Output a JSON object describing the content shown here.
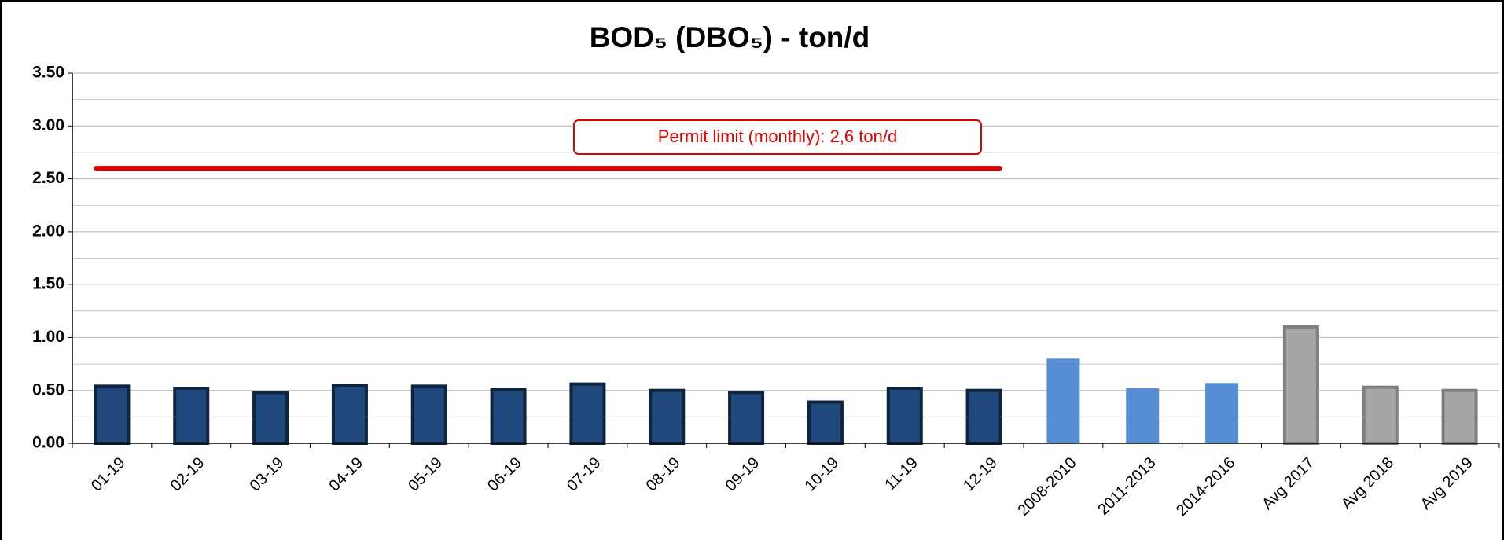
{
  "chart_data": {
    "type": "bar",
    "title": "BOD₅ (DBO₅) - ton/d",
    "categories": [
      "01-19",
      "02-19",
      "03-19",
      "04-19",
      "05-19",
      "06-19",
      "07-19",
      "08-19",
      "09-19",
      "10-19",
      "11-19",
      "12-19",
      "2008-2010",
      "2011-2013",
      "2014-2016",
      "Avg 2017",
      "Avg 2018",
      "Avg 2019"
    ],
    "values": [
      0.54,
      0.52,
      0.48,
      0.55,
      0.54,
      0.51,
      0.56,
      0.5,
      0.48,
      0.39,
      0.52,
      0.5,
      0.8,
      0.52,
      0.57,
      1.1,
      0.53,
      0.5
    ],
    "colors": [
      "#1f497d",
      "#1f497d",
      "#1f497d",
      "#1f497d",
      "#1f497d",
      "#1f497d",
      "#1f497d",
      "#1f497d",
      "#1f497d",
      "#1f497d",
      "#1f497d",
      "#1f497d",
      "#558ed5",
      "#558ed5",
      "#558ed5",
      "#a6a6a6",
      "#a6a6a6",
      "#a6a6a6"
    ],
    "border_colors": [
      "#0f243e",
      "#0f243e",
      "#0f243e",
      "#0f243e",
      "#0f243e",
      "#0f243e",
      "#0f243e",
      "#0f243e",
      "#0f243e",
      "#0f243e",
      "#0f243e",
      "#0f243e",
      null,
      null,
      null,
      "#7f7f7f",
      "#7f7f7f",
      "#7f7f7f"
    ],
    "ylim": [
      0,
      3.5
    ],
    "yticks": [
      {
        "value": 0,
        "label": "0.00"
      },
      {
        "value": 0.5,
        "label": "0.50"
      },
      {
        "value": 1,
        "label": "1.00"
      },
      {
        "value": 1.5,
        "label": "1.50"
      },
      {
        "value": 2,
        "label": "2.00"
      },
      {
        "value": 2.5,
        "label": "2.50"
      },
      {
        "value": 3,
        "label": "3.00"
      },
      {
        "value": 3.5,
        "label": "3.50"
      }
    ],
    "minor_yticks": [
      0.25,
      0.75,
      1.25,
      1.75,
      2.25,
      2.75,
      3.25
    ],
    "grid": true,
    "annotation": {
      "text": "Permit limit (monthly): 2,6 ton/d",
      "value": 2.6,
      "from": "01-19",
      "to": "12-19",
      "color": "#e00000"
    }
  }
}
